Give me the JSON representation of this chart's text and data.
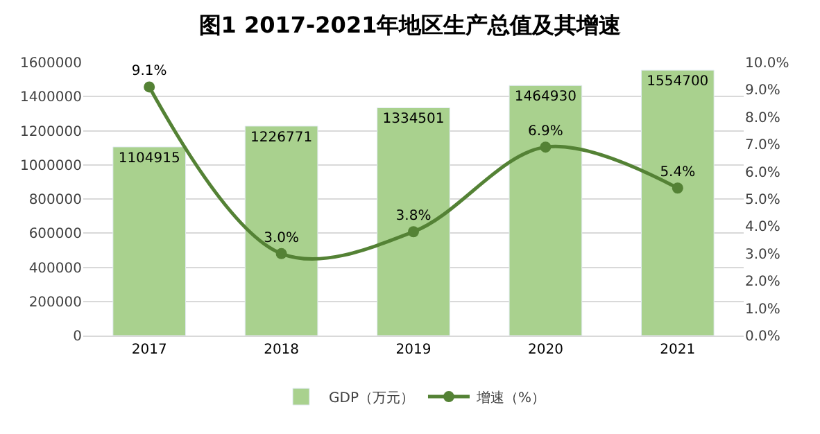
{
  "chart_data": {
    "type": "bar",
    "title": "图1 2017-2021年地区生产总值及其增速",
    "categories": [
      "2017",
      "2018",
      "2019",
      "2020",
      "2021"
    ],
    "series": [
      {
        "name": "GDP（万元）",
        "color": "#a9d18e",
        "values": [
          1104915,
          1226771,
          1334501,
          1464930,
          1554700
        ],
        "value_labels": [
          "1104915",
          "1226771",
          "1334501",
          "1464930",
          "1554700"
        ]
      },
      {
        "name": "增速（%）",
        "type": "line",
        "axis": "y2",
        "color": "#548235",
        "marker": "circle",
        "line_style": "solid",
        "values": [
          9.1,
          3.0,
          3.8,
          6.9,
          5.4
        ],
        "value_labels": [
          "9.1%",
          "3.0%",
          "3.8%",
          "6.9%",
          "5.4%"
        ]
      }
    ],
    "ylim": [
      0,
      1600000
    ],
    "yticks": [
      0,
      200000,
      400000,
      600000,
      800000,
      1000000,
      1200000,
      1400000,
      1600000
    ],
    "y2lim": [
      0,
      10
    ],
    "y2ticks": [
      {
        "value": 0,
        "label": "0.0%"
      },
      {
        "value": 1,
        "label": "1.0%"
      },
      {
        "value": 2,
        "label": "2.0%"
      },
      {
        "value": 3,
        "label": "3.0%"
      },
      {
        "value": 4,
        "label": "4.0%"
      },
      {
        "value": 5,
        "label": "5.0%"
      },
      {
        "value": 6,
        "label": "6.0%"
      },
      {
        "value": 7,
        "label": "7.0%"
      },
      {
        "value": 8,
        "label": "8.0%"
      },
      {
        "value": 9,
        "label": "9.0%"
      },
      {
        "value": 10,
        "label": "10.0%"
      }
    ],
    "grid": "y",
    "legend": "bottom"
  }
}
